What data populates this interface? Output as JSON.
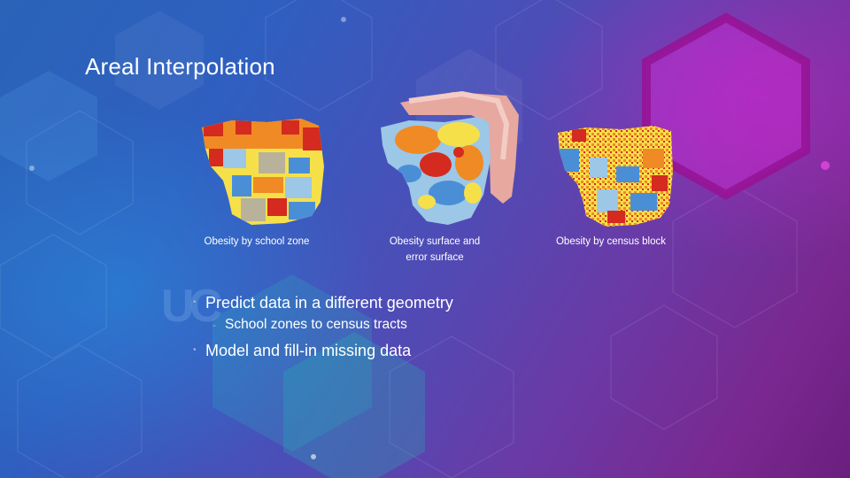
{
  "slide": {
    "title": "Areal Interpolation",
    "logo_text": "UC"
  },
  "maps": [
    {
      "caption": "Obesity by school zone"
    },
    {
      "caption_line1": "Obesity surface and",
      "caption_line2": "error surface"
    },
    {
      "caption": "Obesity by census block"
    }
  ],
  "bullets": [
    {
      "text": "Predict data in a different geometry",
      "sub": [
        "School zones to census tracts"
      ]
    },
    {
      "text": "Model and fill-in missing data",
      "sub": []
    }
  ],
  "marker_glyph": "•",
  "sub_marker_glyph": "-",
  "colors": {
    "accent": "#2f5fc0",
    "map_red": "#d42a1f",
    "map_orange": "#f08a24",
    "map_yellow": "#f6e04a",
    "map_blue": "#4a8fd6",
    "map_lightblue": "#9cc7e6",
    "map_gray": "#b8b29a",
    "error_pink": "#e7a8a0"
  }
}
